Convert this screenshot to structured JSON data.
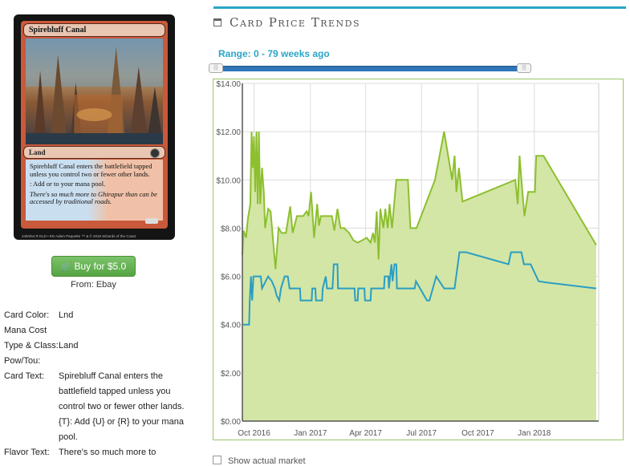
{
  "card": {
    "name": "Spirebluff Canal",
    "type_line": "Land",
    "rules_text": "Spirebluff Canal enters the battlefield tapped unless you control two or fewer other lands.",
    "ability_text": ": Add  or  to your mana pool.",
    "flavor_text": "There's so much more to Ghirapur than can be accessed by traditional roads.",
    "collector_info": "249/264 R",
    "set_info": "KLD • EN",
    "artist": "Adam Paquette",
    "copyright": "™ & © 2016 Wizards of the Coast"
  },
  "buy": {
    "label": "Buy for $5.0",
    "from": "From: Ebay"
  },
  "details": [
    {
      "label": "Card Color:",
      "value": "Lnd"
    },
    {
      "label": "Mana Cost",
      "value": ""
    },
    {
      "label": "Type & Class:",
      "value": "Land"
    },
    {
      "label": "Pow/Tou:",
      "value": ""
    },
    {
      "label": "Card Text:",
      "value": "Spirebluff Canal enters the battlefield tapped unless you control two or fewer other lands. {T}: Add {U} or {R} to your mana pool."
    },
    {
      "label": "Flavor Text:",
      "value": "There's so much more to"
    }
  ],
  "panel": {
    "title": "Card Price Trends",
    "range": "Range: 0 - 79 weeks ago"
  },
  "colors": {
    "accent": "#2aa5c7",
    "fair": "#8dbf2e",
    "fair_fill": "#d3e6a6",
    "low": "#2a9ec4",
    "buy_button": "#5cb14a"
  },
  "chart_data": {
    "type": "area",
    "x_ticks": [
      "Oct 2016",
      "Jan 2017",
      "Apr 2017",
      "Jul 2017",
      "Oct 2017",
      "Jan 2018"
    ],
    "y_ticks": [
      "$0.00",
      "$2.00",
      "$4.00",
      "$6.00",
      "$8.00",
      "$10.00",
      "$12.00",
      "$14.00"
    ],
    "ylim": [
      0,
      14
    ],
    "xlim": [
      "2016-09-12",
      "2018-04-16"
    ],
    "grid": true,
    "series": [
      {
        "role": "fair",
        "points": [
          [
            "2016-09-12",
            6.9
          ],
          [
            "2016-09-14",
            7.9
          ],
          [
            "2016-09-18",
            7.6
          ],
          [
            "2016-09-21",
            8.4
          ],
          [
            "2016-09-25",
            9.0
          ],
          [
            "2016-09-27",
            12.0
          ],
          [
            "2016-09-29",
            10.5
          ],
          [
            "2016-10-01",
            11.8
          ],
          [
            "2016-10-03",
            9.5
          ],
          [
            "2016-10-05",
            12.0
          ],
          [
            "2016-10-07",
            9.0
          ],
          [
            "2016-10-09",
            12.0
          ],
          [
            "2016-10-11",
            9.0
          ],
          [
            "2016-10-14",
            10.5
          ],
          [
            "2016-10-17",
            9.5
          ],
          [
            "2016-10-19",
            8.0
          ],
          [
            "2016-10-24",
            8.8
          ],
          [
            "2016-10-28",
            8.7
          ],
          [
            "2016-11-05",
            6.3
          ],
          [
            "2016-11-10",
            8.0
          ],
          [
            "2016-11-15",
            7.8
          ],
          [
            "2016-11-22",
            7.8
          ],
          [
            "2016-11-29",
            8.9
          ],
          [
            "2016-12-03",
            7.8
          ],
          [
            "2016-12-10",
            8.5
          ],
          [
            "2016-12-20",
            8.5
          ],
          [
            "2016-12-26",
            8.7
          ],
          [
            "2016-12-29",
            8.5
          ],
          [
            "2017-01-02",
            9.5
          ],
          [
            "2017-01-07",
            7.6
          ],
          [
            "2017-01-12",
            9.0
          ],
          [
            "2017-01-15",
            8.1
          ],
          [
            "2017-01-18",
            8.5
          ],
          [
            "2017-02-05",
            8.5
          ],
          [
            "2017-02-09",
            7.9
          ],
          [
            "2017-02-14",
            8.8
          ],
          [
            "2017-02-19",
            8.0
          ],
          [
            "2017-02-25",
            8.0
          ],
          [
            "2017-03-05",
            7.8
          ],
          [
            "2017-03-12",
            7.5
          ],
          [
            "2017-03-19",
            7.4
          ],
          [
            "2017-04-03",
            7.6
          ],
          [
            "2017-04-09",
            7.4
          ],
          [
            "2017-04-13",
            7.8
          ],
          [
            "2017-04-16",
            7.4
          ],
          [
            "2017-04-19",
            8.7
          ],
          [
            "2017-04-22",
            6.7
          ],
          [
            "2017-04-25",
            8.8
          ],
          [
            "2017-04-30",
            8.0
          ],
          [
            "2017-05-03",
            8.8
          ],
          [
            "2017-05-07",
            8.0
          ],
          [
            "2017-05-10",
            9.0
          ],
          [
            "2017-05-14",
            8.0
          ],
          [
            "2017-05-21",
            10.0
          ],
          [
            "2017-06-09",
            10.0
          ],
          [
            "2017-06-13",
            8.0
          ],
          [
            "2017-06-23",
            8.0
          ],
          [
            "2017-07-23",
            10.0
          ],
          [
            "2017-08-07",
            12.0
          ],
          [
            "2017-08-20",
            10.0
          ],
          [
            "2017-08-24",
            11.0
          ],
          [
            "2017-08-27",
            9.5
          ],
          [
            "2017-08-31",
            10.5
          ],
          [
            "2017-09-06",
            9.1
          ],
          [
            "2017-12-01",
            10.0
          ],
          [
            "2017-12-05",
            9.0
          ],
          [
            "2017-12-08",
            11.0
          ],
          [
            "2017-12-11",
            10.0
          ],
          [
            "2017-12-16",
            8.5
          ],
          [
            "2017-12-22",
            9.5
          ],
          [
            "2018-01-02",
            9.5
          ],
          [
            "2018-01-04",
            11.0
          ],
          [
            "2018-01-16",
            11.0
          ],
          [
            "2018-04-12",
            7.3
          ]
        ]
      },
      {
        "role": "low",
        "points": [
          [
            "2016-09-12",
            4.0
          ],
          [
            "2016-09-23",
            4.0
          ],
          [
            "2016-09-24",
            5.0
          ],
          [
            "2016-09-26",
            6.0
          ],
          [
            "2016-09-28",
            5.0
          ],
          [
            "2016-09-30",
            6.0
          ],
          [
            "2016-10-12",
            6.0
          ],
          [
            "2016-10-14",
            5.5
          ],
          [
            "2016-10-24",
            6.0
          ],
          [
            "2016-10-30",
            5.8
          ],
          [
            "2016-11-04",
            5.5
          ],
          [
            "2016-11-07",
            5.2
          ],
          [
            "2016-11-11",
            5.0
          ],
          [
            "2016-11-14",
            5.5
          ],
          [
            "2016-11-20",
            6.0
          ],
          [
            "2016-11-25",
            6.0
          ],
          [
            "2016-11-28",
            5.5
          ],
          [
            "2016-12-15",
            5.5
          ],
          [
            "2016-12-16",
            5.0
          ],
          [
            "2017-01-03",
            5.0
          ],
          [
            "2017-01-04",
            5.5
          ],
          [
            "2017-01-09",
            5.5
          ],
          [
            "2017-01-10",
            5.0
          ],
          [
            "2017-01-20",
            5.0
          ],
          [
            "2017-01-21",
            5.5
          ],
          [
            "2017-01-26",
            6.0
          ],
          [
            "2017-01-28",
            5.5
          ],
          [
            "2017-02-06",
            5.5
          ],
          [
            "2017-02-08",
            6.5
          ],
          [
            "2017-02-14",
            6.5
          ],
          [
            "2017-02-15",
            5.5
          ],
          [
            "2017-03-14",
            5.5
          ],
          [
            "2017-03-15",
            5.0
          ],
          [
            "2017-03-19",
            5.0
          ],
          [
            "2017-03-20",
            5.5
          ],
          [
            "2017-03-30",
            5.5
          ],
          [
            "2017-03-31",
            5.0
          ],
          [
            "2017-04-09",
            5.0
          ],
          [
            "2017-04-10",
            5.5
          ],
          [
            "2017-05-01",
            5.5
          ],
          [
            "2017-05-02",
            6.0
          ],
          [
            "2017-05-08",
            6.0
          ],
          [
            "2017-05-09",
            5.5
          ],
          [
            "2017-05-13",
            6.5
          ],
          [
            "2017-05-15",
            5.8
          ],
          [
            "2017-05-18",
            6.5
          ],
          [
            "2017-05-21",
            6.5
          ],
          [
            "2017-05-22",
            5.5
          ],
          [
            "2017-06-20",
            5.5
          ],
          [
            "2017-06-22",
            5.8
          ],
          [
            "2017-07-10",
            5.0
          ],
          [
            "2017-07-14",
            5.0
          ],
          [
            "2017-07-25",
            6.0
          ],
          [
            "2017-08-07",
            5.5
          ],
          [
            "2017-08-24",
            5.5
          ],
          [
            "2017-09-01",
            7.0
          ],
          [
            "2017-09-12",
            7.0
          ],
          [
            "2017-11-20",
            6.5
          ],
          [
            "2017-11-24",
            7.0
          ],
          [
            "2017-12-11",
            7.0
          ],
          [
            "2017-12-15",
            6.5
          ],
          [
            "2017-12-26",
            6.5
          ],
          [
            "2018-01-08",
            5.8
          ],
          [
            "2018-01-20",
            5.75
          ],
          [
            "2018-04-12",
            5.5
          ]
        ]
      }
    ]
  },
  "footer": {
    "cutoff": "Show actual market"
  }
}
